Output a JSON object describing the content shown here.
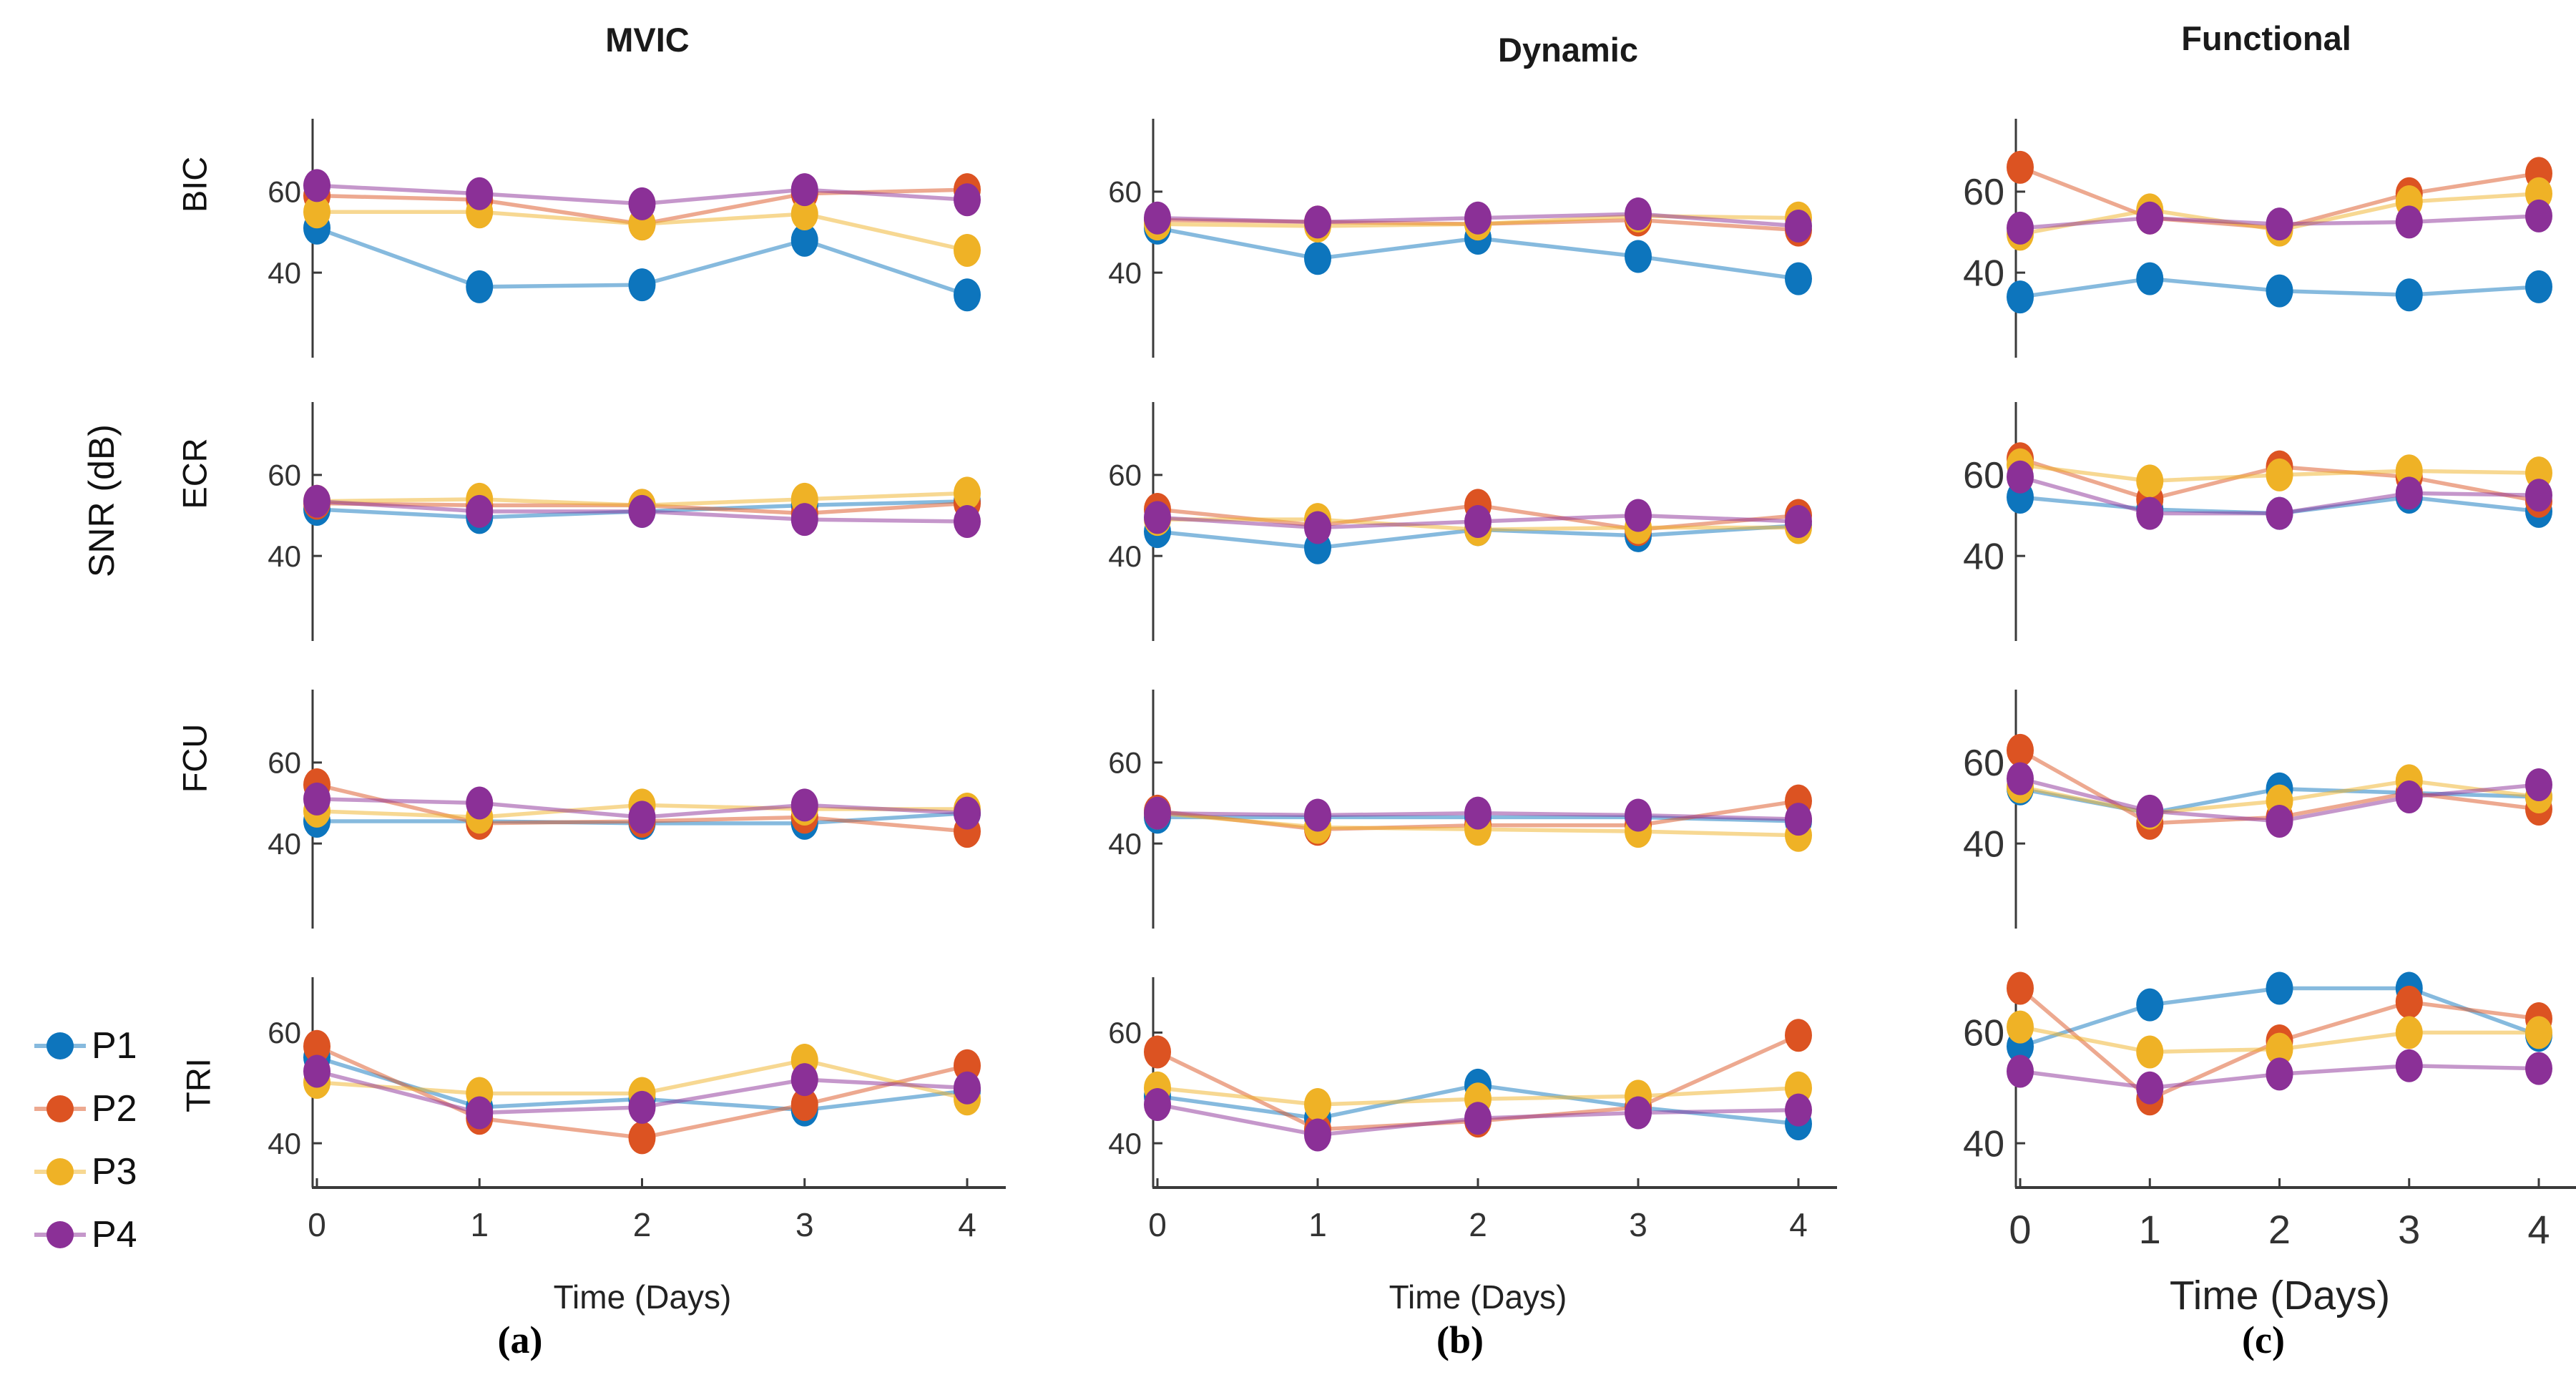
{
  "figure": {
    "column_titles": [
      "MVIC",
      "Dynamic",
      "Functional"
    ],
    "row_titles": [
      "BIC",
      "ECR",
      "FCU",
      "TRI"
    ],
    "footnotes": [
      "(a)",
      "(b)",
      "(c)"
    ]
  },
  "chart_data": {
    "type": "line",
    "x": [
      0,
      1,
      2,
      3,
      4
    ],
    "xlabel": "Time (Days)",
    "ylabel": "SNR (dB)",
    "yticks": [
      40,
      60
    ],
    "columns": [
      "MVIC",
      "Dynamic",
      "Functional"
    ],
    "rows": [
      "BIC",
      "ECR",
      "FCU",
      "TRI"
    ],
    "series_names": [
      "P1",
      "P2",
      "P3",
      "P4"
    ],
    "colors": {
      "P1": "#0d75bd",
      "P2": "#dc5322",
      "P3": "#efb226",
      "P4": "#8b3097"
    },
    "legend_position": "bottom-left",
    "grid": false,
    "subplots": [
      {
        "muscle": "BIC",
        "condition": "MVIC",
        "ylim": [
          19,
          78
        ],
        "series": [
          [
            51,
            36.5,
            37,
            48,
            34.5
          ],
          [
            59,
            58,
            52,
            59.5,
            60.5
          ],
          [
            55,
            55,
            52,
            54.5,
            45.5
          ],
          [
            61.5,
            59.5,
            57,
            60.5,
            58
          ]
        ]
      },
      {
        "muscle": "BIC",
        "condition": "Dynamic",
        "ylim": [
          19,
          78
        ],
        "series": [
          [
            51,
            43.5,
            48.5,
            44,
            38.5
          ],
          [
            53,
            52.5,
            52,
            53,
            50.5
          ],
          [
            52,
            51.5,
            52,
            54,
            53.5
          ],
          [
            53.5,
            52.5,
            53.5,
            54.5,
            51.5
          ]
        ]
      },
      {
        "muscle": "BIC",
        "condition": "Functional",
        "ylim": [
          19,
          78
        ],
        "series": [
          [
            34,
            38.5,
            35.5,
            34.5,
            36.5
          ],
          [
            66,
            53.5,
            51,
            59.5,
            64.5
          ],
          [
            49.5,
            55.5,
            50.5,
            57.5,
            59.5
          ],
          [
            51,
            53.5,
            52,
            52.5,
            54
          ]
        ]
      },
      {
        "muscle": "ECR",
        "condition": "MVIC",
        "ylim": [
          19,
          78
        ],
        "series": [
          [
            51.5,
            49.5,
            51,
            52.5,
            53.5
          ],
          [
            53,
            52.5,
            52.5,
            50.5,
            53
          ],
          [
            53.5,
            54,
            52.5,
            54,
            55.5
          ],
          [
            53.5,
            51,
            51,
            49,
            48.5
          ]
        ]
      },
      {
        "muscle": "ECR",
        "condition": "Dynamic",
        "ylim": [
          19,
          78
        ],
        "series": [
          [
            46,
            42,
            46.5,
            45,
            47.5
          ],
          [
            51.5,
            47.5,
            52.5,
            46.5,
            50
          ],
          [
            49,
            49,
            46.5,
            47,
            47
          ],
          [
            49.5,
            47,
            48.5,
            50,
            48.5
          ]
        ]
      },
      {
        "muscle": "ECR",
        "condition": "Functional",
        "ylim": [
          19,
          78
        ],
        "series": [
          [
            54.5,
            51.5,
            50.5,
            54.5,
            51
          ],
          [
            64,
            54,
            62,
            59.5,
            53.5
          ],
          [
            62.5,
            58.5,
            60,
            61,
            60.5
          ],
          [
            59.5,
            50.5,
            50.5,
            55.5,
            55
          ]
        ]
      },
      {
        "muscle": "FCU",
        "condition": "MVIC",
        "ylim": [
          19,
          78
        ],
        "series": [
          [
            45.5,
            45.5,
            45,
            45,
            47.5
          ],
          [
            54.5,
            45,
            45.5,
            46.5,
            43
          ],
          [
            48,
            46.5,
            49.5,
            48.5,
            48.5
          ],
          [
            51,
            50,
            46.5,
            49.5,
            47.5
          ]
        ]
      },
      {
        "muscle": "FCU",
        "condition": "Dynamic",
        "ylim": [
          19,
          78
        ],
        "series": [
          [
            46.5,
            46.5,
            46.5,
            46.5,
            45.5
          ],
          [
            48,
            43.5,
            44.5,
            44.5,
            50.5
          ],
          [
            47.5,
            44,
            43.5,
            43,
            42
          ],
          [
            47.5,
            47,
            47.5,
            47,
            46
          ]
        ]
      },
      {
        "muscle": "FCU",
        "condition": "Functional",
        "ylim": [
          19,
          78
        ],
        "series": [
          [
            53.5,
            47.5,
            53.5,
            52.5,
            51.5
          ],
          [
            63,
            45,
            46.5,
            52.5,
            48.5
          ],
          [
            54,
            47.5,
            50.5,
            55.5,
            51.5
          ],
          [
            56,
            48,
            45.5,
            51.5,
            54.5
          ]
        ]
      },
      {
        "muscle": "TRI",
        "condition": "MVIC",
        "ylim": [
          32,
          70
        ],
        "series": [
          [
            55.5,
            46.5,
            48,
            46,
            49.5
          ],
          [
            57.5,
            44.5,
            41,
            47,
            54
          ],
          [
            51,
            49,
            49,
            55,
            48
          ],
          [
            53,
            45.5,
            46.5,
            51.5,
            50
          ]
        ]
      },
      {
        "muscle": "TRI",
        "condition": "Dynamic",
        "ylim": [
          32,
          70
        ],
        "series": [
          [
            48.5,
            44.5,
            50.5,
            46.5,
            43.5
          ],
          [
            56.5,
            42.5,
            44,
            46.5,
            59.5
          ],
          [
            50,
            47,
            48,
            48.5,
            50
          ],
          [
            47,
            41.5,
            44.5,
            45.5,
            46
          ]
        ]
      },
      {
        "muscle": "TRI",
        "condition": "Functional",
        "ylim": [
          32,
          70
        ],
        "series": [
          [
            57.5,
            65,
            68,
            68,
            59.5
          ],
          [
            68,
            48,
            58.5,
            65.5,
            62.5
          ],
          [
            61,
            56.5,
            57,
            60,
            60
          ],
          [
            53,
            50,
            52.5,
            54,
            53.5
          ]
        ]
      }
    ]
  }
}
